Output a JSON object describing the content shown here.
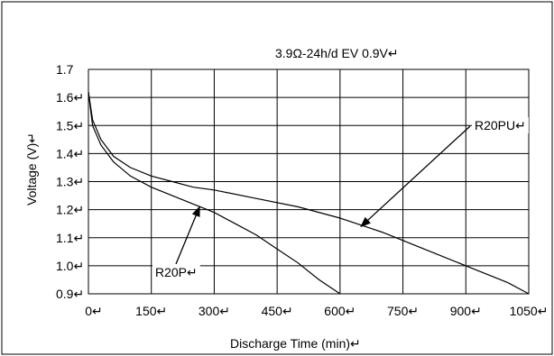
{
  "chart_data": {
    "type": "line",
    "title": "3.9Ω-24h/d    EV 0.9V↵",
    "xlabel": "Discharge Time (min)↵",
    "ylabel": "Voltage (V)↵",
    "xlim": [
      0,
      1050
    ],
    "ylim": [
      0.9,
      1.7
    ],
    "x_ticks": [
      "0↵",
      "150↵",
      "300↵",
      "450↵",
      "600↵",
      "750↵",
      "900↵",
      "1050↵"
    ],
    "y_ticks": [
      "1.7",
      "1.6↵",
      "1.5↵",
      "1.4↵",
      "1.3↵",
      "1.2↵",
      "1.1↵",
      "1.0↵",
      "0.9↵"
    ],
    "grid": true,
    "series": [
      {
        "name": "R20P↵",
        "x": [
          0,
          10,
          30,
          60,
          100,
          150,
          200,
          250,
          300,
          350,
          400,
          450,
          500,
          550,
          600
        ],
        "y": [
          1.62,
          1.5,
          1.43,
          1.37,
          1.32,
          1.28,
          1.25,
          1.22,
          1.19,
          1.15,
          1.11,
          1.06,
          1.01,
          0.95,
          0.9
        ]
      },
      {
        "name": "R20PU",
        "x": [
          0,
          10,
          30,
          60,
          100,
          150,
          200,
          250,
          300,
          400,
          500,
          600,
          700,
          800,
          900,
          1000,
          1050
        ],
        "y": [
          1.62,
          1.52,
          1.45,
          1.39,
          1.35,
          1.32,
          1.3,
          1.28,
          1.27,
          1.24,
          1.21,
          1.17,
          1.12,
          1.06,
          1.0,
          0.94,
          0.9
        ]
      }
    ],
    "annotations": [
      {
        "text": "R20P↵",
        "series": 0,
        "x": 265,
        "y": 1.21
      },
      {
        "text": "R20PU↵",
        "series": 1,
        "x": 650,
        "y": 1.14
      }
    ]
  }
}
